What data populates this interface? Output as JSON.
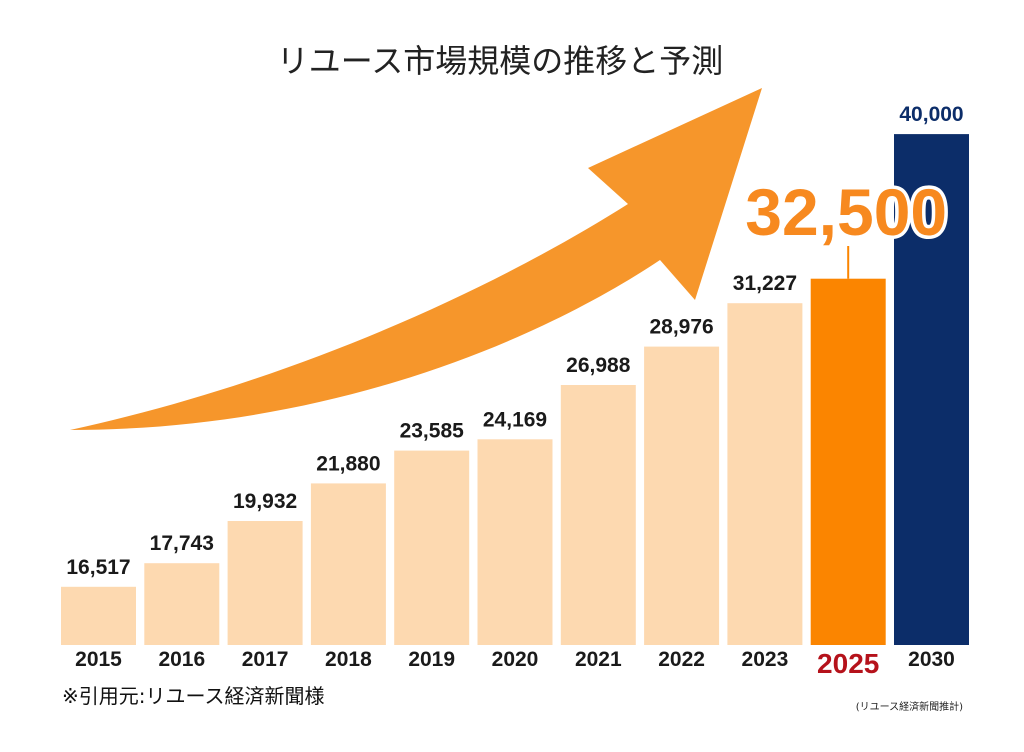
{
  "chart_data": {
    "type": "bar",
    "title": "リユース市場規模の推移と予測",
    "categories": [
      "2015",
      "2016",
      "2017",
      "2018",
      "2019",
      "2020",
      "2021",
      "2022",
      "2023",
      "2025",
      "2030"
    ],
    "values": [
      16517,
      17743,
      19932,
      21880,
      23585,
      24169,
      26988,
      28976,
      31227,
      32500,
      40000
    ],
    "value_labels": [
      "16,517",
      "17,743",
      "19,932",
      "21,880",
      "23,585",
      "24,169",
      "26,988",
      "28,976",
      "31,227",
      "32,500",
      "40,000"
    ],
    "xlabel": "",
    "ylabel": "",
    "ylim": [
      13500,
      40000
    ],
    "grid": false,
    "legend": "none",
    "highlight_category": "2025",
    "colors": {
      "bar": "#fdd9b0",
      "highlight_bar": "#fb8500",
      "forecast_bar": "#0c2d69",
      "arrow": "#f6962b",
      "highlight_value": "#f7891f",
      "highlight_year": "#b5121b",
      "forecast_value": "#0c2d69"
    }
  },
  "source": "※引用元:リユース経済新聞様",
  "note": "(リユース経済新聞推計)"
}
